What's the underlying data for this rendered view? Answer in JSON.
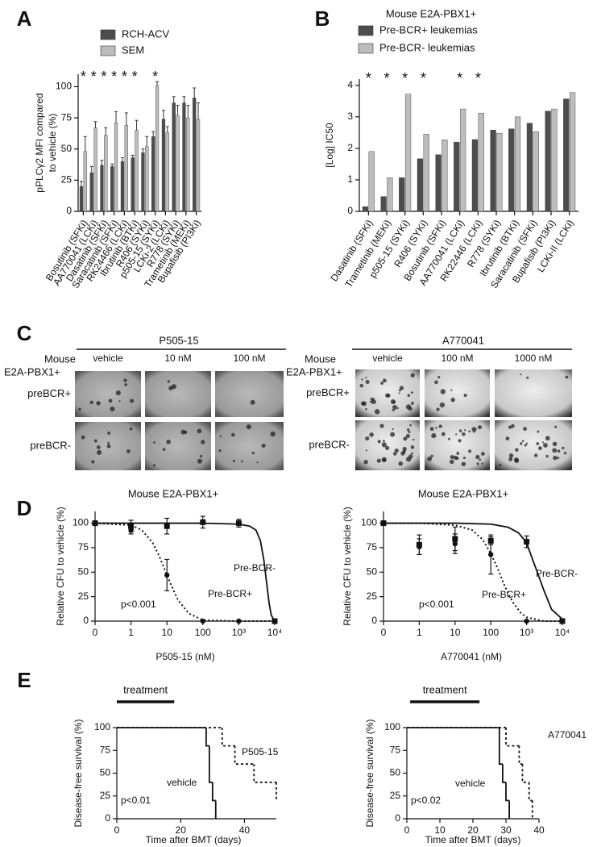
{
  "panel_labels": [
    "A",
    "B",
    "C",
    "D",
    "E"
  ],
  "chart_data": [
    {
      "type": "bar",
      "categories": [
        "Bosutinib (SFKi)",
        "AA770041 (LCKi)",
        "Dasatinib (SFKi)",
        "Saracatinib (SFKi)",
        "RK24466 (LCKi)",
        "Ibrutinib (BTKi)",
        "R406 (SYKi)",
        "p505-15 (SYKi)",
        "LCKi-2 (LCKi)",
        "R778 (SYKi)",
        "Trametinib (MEKi)",
        "Bupafisib (PI3Ki)"
      ],
      "series": [
        {
          "name": "RCH-ACV",
          "color": "#4d4d4d",
          "values": [
            20,
            31,
            37,
            36,
            40,
            43,
            47,
            60,
            74,
            87,
            87,
            91
          ],
          "errors": [
            4,
            5,
            4,
            2,
            3,
            2,
            3,
            4,
            7,
            5,
            5,
            8
          ]
        },
        {
          "name": "SEM",
          "color": "#bdbdbd",
          "values": [
            48,
            67,
            61,
            71,
            69,
            65,
            52,
            101,
            63,
            77,
            75,
            74
          ],
          "errors": [
            12,
            5,
            6,
            9,
            10,
            8,
            8,
            3,
            5,
            8,
            10,
            13
          ]
        }
      ],
      "significance": [
        "*",
        "*",
        "*",
        "*",
        "*",
        "*",
        null,
        "*",
        null,
        null,
        null,
        null
      ],
      "y_label": [
        "pPLCγ2 MFI compared",
        "to vehicle (%)"
      ],
      "ylim": [
        0,
        110
      ],
      "yticks": [
        0,
        25,
        50,
        75,
        100
      ]
    },
    {
      "type": "bar",
      "title": "Mouse E2A-PBX1+",
      "categories": [
        "Dasatinib (SFKi)",
        "Trametinib (MEKi)",
        "p505-15 (SYKi)",
        "R406 (SYKi)",
        "Bosutinib (SFKi)",
        "AA770041 (LCKi)",
        "RK22446 (LCKi)",
        "R778 (SYKi)",
        "Ibrutinib (BTKi)",
        "Saracatinib (SFKi)",
        "Bupafisib (PI3Ki)",
        "LCKi-II (LCKi)"
      ],
      "series": [
        {
          "name": "Pre-BCR+ leukemias",
          "color": "#4d4d4d",
          "values": [
            0.15,
            0.47,
            1.07,
            1.67,
            1.8,
            2.2,
            2.28,
            2.58,
            2.62,
            2.8,
            3.18,
            3.57
          ]
        },
        {
          "name": "Pre-BCR- leukemias",
          "color": "#bdbdbd",
          "values": [
            1.9,
            1.07,
            3.72,
            2.45,
            2.27,
            3.25,
            3.12,
            2.48,
            3.0,
            2.53,
            3.25,
            3.77
          ]
        }
      ],
      "significance": [
        "*",
        "*",
        "*",
        "*",
        null,
        "*",
        "*",
        null,
        null,
        null,
        null,
        null
      ],
      "y_label": [
        "[Log] IC50"
      ],
      "ylim": [
        0,
        4.2
      ],
      "yticks": [
        0,
        1,
        2,
        3,
        4
      ]
    },
    {
      "type": "line",
      "title": "Mouse  E2A-PBX1+",
      "x_label": "P505-15 (nM)",
      "y_label": [
        "Relative CFU to vehicle (%)"
      ],
      "log_x": true,
      "xlim": [
        0.1,
        10000
      ],
      "xticks": [
        0,
        1,
        10,
        100,
        {
          "value": 1000,
          "label": "10³"
        },
        {
          "value": 10000,
          "label": "10⁴"
        }
      ],
      "ylim": [
        0,
        112
      ],
      "yticks": [
        0,
        25,
        50,
        75,
        100
      ],
      "annotation": "p<0.001",
      "series": [
        {
          "name": "Pre-BCR+",
          "marker": "circle",
          "dash": "dotted",
          "x": [
            0,
            1,
            10,
            100,
            1000,
            10000
          ],
          "values": [
            100,
            93,
            47,
            0,
            0,
            0
          ],
          "errors": [
            0,
            4,
            16,
            0,
            0,
            0
          ],
          "curve_x": [
            0,
            1,
            2,
            4,
            6,
            8,
            10,
            15,
            20,
            40,
            100,
            1000,
            10000
          ],
          "curve_y": [
            100,
            98,
            93,
            80,
            67,
            56,
            47,
            32,
            22,
            8,
            1,
            0,
            0
          ]
        },
        {
          "name": "Pre-BCR-",
          "marker": "square",
          "dash": "solid",
          "x": [
            0,
            1,
            10,
            100,
            1000,
            10000
          ],
          "values": [
            100,
            97,
            97,
            101,
            100,
            0
          ],
          "errors": [
            0,
            6,
            8,
            6,
            4,
            0
          ],
          "curve_x": [
            0,
            100,
            1000,
            2000,
            3000,
            4000,
            5000,
            6000,
            7000,
            8000,
            10000
          ],
          "curve_y": [
            100,
            100,
            99,
            97,
            93,
            82,
            62,
            38,
            18,
            6,
            0
          ]
        }
      ]
    },
    {
      "type": "line",
      "title": "Mouse  E2A-PBX1+",
      "x_label": "A770041 (nM)",
      "y_label": [
        "Relative CFU to vehicle (%)"
      ],
      "log_x": true,
      "xlim": [
        0.1,
        10000
      ],
      "xticks": [
        0,
        1,
        10,
        100,
        {
          "value": 1000,
          "label": "10³"
        },
        {
          "value": 10000,
          "label": "10⁴"
        }
      ],
      "ylim": [
        0,
        112
      ],
      "yticks": [
        0,
        25,
        50,
        75,
        100
      ],
      "annotation": "p<0.001",
      "series": [
        {
          "name": "Pre-BCR+",
          "marker": "circle",
          "dash": "dotted",
          "x": [
            0,
            1,
            10,
            100,
            1000,
            10000
          ],
          "values": [
            100,
            76,
            79,
            68,
            0,
            0
          ],
          "errors": [
            0,
            8,
            10,
            20,
            0,
            0
          ],
          "curve_x": [
            0,
            1,
            10,
            30,
            60,
            100,
            150,
            250,
            400,
            700,
            1000,
            3000,
            10000
          ],
          "curve_y": [
            100,
            100,
            98,
            93,
            83,
            69,
            55,
            35,
            20,
            8,
            4,
            0,
            0
          ]
        },
        {
          "name": "Pre-BCR-",
          "marker": "square",
          "dash": "solid",
          "x": [
            0,
            1,
            10,
            100,
            1000,
            10000
          ],
          "values": [
            100,
            78,
            84,
            82,
            81,
            0
          ],
          "errors": [
            0,
            10,
            12,
            4,
            6,
            0
          ],
          "curve_x": [
            0,
            10,
            100,
            300,
            600,
            1000,
            1500,
            2000,
            3000,
            5000,
            10000
          ],
          "curve_y": [
            100,
            100,
            99,
            96,
            90,
            80,
            62,
            50,
            32,
            12,
            2
          ]
        }
      ]
    },
    {
      "type": "step",
      "x_label": "Time after BMT (days)",
      "y_label": [
        "Disease-free survival (%)"
      ],
      "xlim": [
        0,
        50
      ],
      "xticks": [
        0,
        20,
        40
      ],
      "ylim": [
        0,
        100
      ],
      "yticks": [
        0,
        25,
        50,
        75,
        100
      ],
      "annotation": "p<0.01",
      "treatment": {
        "label": "treatment",
        "span": [
          0,
          18
        ]
      },
      "series": [
        {
          "name": "vehicle",
          "dash": "solid",
          "x": [
            0,
            28,
            29,
            30,
            31
          ],
          "values": [
            100,
            80,
            40,
            20,
            0
          ]
        },
        {
          "name": "P505-15",
          "dash": "dotted",
          "x": [
            0,
            33,
            37,
            43,
            50
          ],
          "values": [
            100,
            80,
            60,
            40,
            20
          ]
        }
      ]
    },
    {
      "type": "step",
      "x_label": "Time after BMT (days)",
      "y_label": [
        "Disease-free survival (%)"
      ],
      "xlim": [
        0,
        40
      ],
      "xticks": [
        0,
        10,
        20,
        30,
        40
      ],
      "ylim": [
        0,
        100
      ],
      "yticks": [
        0,
        25,
        50,
        75,
        100
      ],
      "annotation": "p<0.02",
      "treatment": {
        "label": "treatment",
        "span": [
          1,
          22
        ]
      },
      "series": [
        {
          "name": "vehicle",
          "dash": "solid",
          "x": [
            0,
            28,
            29,
            30,
            31
          ],
          "values": [
            100,
            60,
            40,
            20,
            0
          ]
        },
        {
          "name": "A770041",
          "dash": "dotted",
          "x": [
            0,
            30,
            34,
            35,
            37,
            38
          ],
          "values": [
            100,
            80,
            60,
            40,
            20,
            0
          ]
        }
      ]
    }
  ],
  "panel_c": {
    "groups": [
      {
        "drug": "P505-15",
        "row_header": [
          "Mouse",
          "E2A-PBX1+"
        ],
        "columns": [
          "vehicle",
          "10 nM",
          "100 nM"
        ],
        "rows": [
          "preBCR+",
          "preBCR-"
        ]
      },
      {
        "drug": "A770041",
        "row_header": [
          "Mouse",
          "E2A-PBX1+"
        ],
        "columns": [
          "vehicle",
          "100 nM",
          "1000 nM"
        ],
        "rows": [
          "preBCR+",
          "preBCR-"
        ]
      }
    ]
  }
}
